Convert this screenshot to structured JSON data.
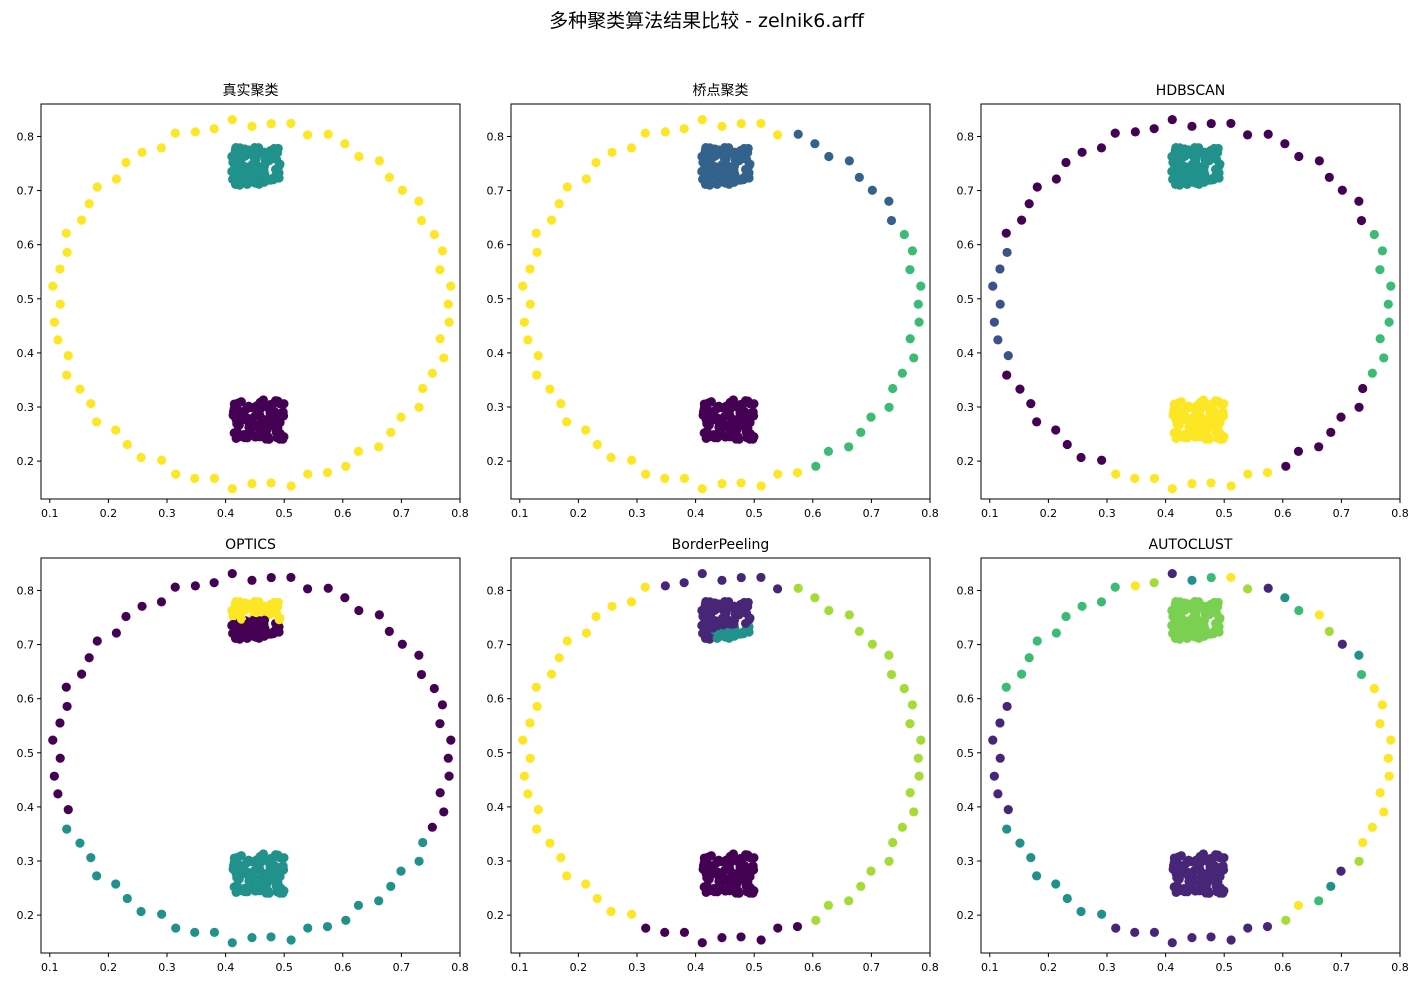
{
  "figure": {
    "suptitle": "多种聚类算法结果比较 - zelnik6.arff"
  },
  "palette": {
    "purple": "#440154",
    "indigo": "#482677",
    "navy": "#3b528b",
    "slate": "#33638d",
    "teal": "#21918c",
    "green": "#3cbb75",
    "lightgreen": "#7ad151",
    "lime": "#a5db36",
    "yellow": "#fde725"
  },
  "chart_data": [
    {
      "type": "scatter",
      "title": "真实聚类",
      "xlim": [
        0.085,
        0.8
      ],
      "ylim": [
        0.13,
        0.86
      ],
      "xticks": [
        "0.1",
        "0.2",
        "0.3",
        "0.4",
        "0.5",
        "0.6",
        "0.7",
        "0.8"
      ],
      "yticks": [
        "0.2",
        "0.3",
        "0.4",
        "0.5",
        "0.6",
        "0.7",
        "0.8"
      ],
      "grid": false,
      "groups": {
        "top": "teal",
        "bottom": "purple",
        "ring": "yellow"
      },
      "ring_colors": {}
    },
    {
      "type": "scatter",
      "title": "桥点聚类",
      "xlim": [
        0.085,
        0.8
      ],
      "ylim": [
        0.13,
        0.86
      ],
      "xticks": [
        "0.1",
        "0.2",
        "0.3",
        "0.4",
        "0.5",
        "0.6",
        "0.7",
        "0.8"
      ],
      "yticks": [
        "0.2",
        "0.3",
        "0.4",
        "0.5",
        "0.6",
        "0.7",
        "0.8"
      ],
      "grid": false,
      "groups": {
        "top": "slate",
        "bottom": "purple",
        "ring": "yellow"
      },
      "ring_colors": {
        "ring_upper_right": "slate",
        "ring_right": "green",
        "ring_lower_right": "green"
      }
    },
    {
      "type": "scatter",
      "title": "HDBSCAN",
      "xlim": [
        0.085,
        0.8
      ],
      "ylim": [
        0.13,
        0.86
      ],
      "xticks": [
        "0.1",
        "0.2",
        "0.3",
        "0.4",
        "0.5",
        "0.6",
        "0.7",
        "0.8"
      ],
      "yticks": [
        "0.2",
        "0.3",
        "0.4",
        "0.5",
        "0.6",
        "0.7",
        "0.8"
      ],
      "grid": false,
      "groups": {
        "top": "teal",
        "bottom": "yellow",
        "ring": "purple"
      },
      "ring_colors": {
        "ring_upper_left": "purple",
        "ring_left": "navy",
        "ring_right": "green",
        "ring_lower_right": "purple",
        "ring_bottom": "yellow"
      }
    },
    {
      "type": "scatter",
      "title": "OPTICS",
      "xlim": [
        0.085,
        0.8
      ],
      "ylim": [
        0.13,
        0.86
      ],
      "xticks": [
        "0.1",
        "0.2",
        "0.3",
        "0.4",
        "0.5",
        "0.6",
        "0.7",
        "0.8"
      ],
      "yticks": [
        "0.2",
        "0.3",
        "0.4",
        "0.5",
        "0.6",
        "0.7",
        "0.8"
      ],
      "grid": false,
      "groups": {
        "top": "purple",
        "top_upper": "yellow",
        "bottom": "teal",
        "ring": "purple"
      },
      "ring_colors": {
        "ring_lower_left": "teal",
        "ring_lower_right": "teal",
        "ring_bottom": "teal",
        "ring_right_low": "teal"
      }
    },
    {
      "type": "scatter",
      "title": "BorderPeeling",
      "xlim": [
        0.085,
        0.8
      ],
      "ylim": [
        0.13,
        0.86
      ],
      "xticks": [
        "0.1",
        "0.2",
        "0.3",
        "0.4",
        "0.5",
        "0.6",
        "0.7",
        "0.8"
      ],
      "yticks": [
        "0.2",
        "0.3",
        "0.4",
        "0.5",
        "0.6",
        "0.7",
        "0.8"
      ],
      "grid": false,
      "groups": {
        "top": "indigo",
        "top_lower": "teal",
        "bottom": "purple",
        "ring": "yellow"
      },
      "ring_colors": {
        "ring_upper_right": "lime",
        "ring_right": "lime",
        "ring_lower_right": "lime",
        "ring_bottom": "purple",
        "ring_top_mid": "indigo"
      }
    },
    {
      "type": "scatter",
      "title": "AUTOCLUST",
      "xlim": [
        0.085,
        0.8
      ],
      "ylim": [
        0.13,
        0.86
      ],
      "xticks": [
        "0.1",
        "0.2",
        "0.3",
        "0.4",
        "0.5",
        "0.6",
        "0.7",
        "0.8"
      ],
      "yticks": [
        "0.2",
        "0.3",
        "0.4",
        "0.5",
        "0.6",
        "0.7",
        "0.8"
      ],
      "grid": false,
      "groups": {
        "top": "lightgreen",
        "bottom": "indigo",
        "ring": "mixed"
      },
      "ring_colors": {
        "ring_upper_left": "green",
        "ring_left": "indigo",
        "ring_right": "yellow",
        "ring_lower_left": "teal",
        "ring_bottom": "indigo"
      }
    }
  ]
}
